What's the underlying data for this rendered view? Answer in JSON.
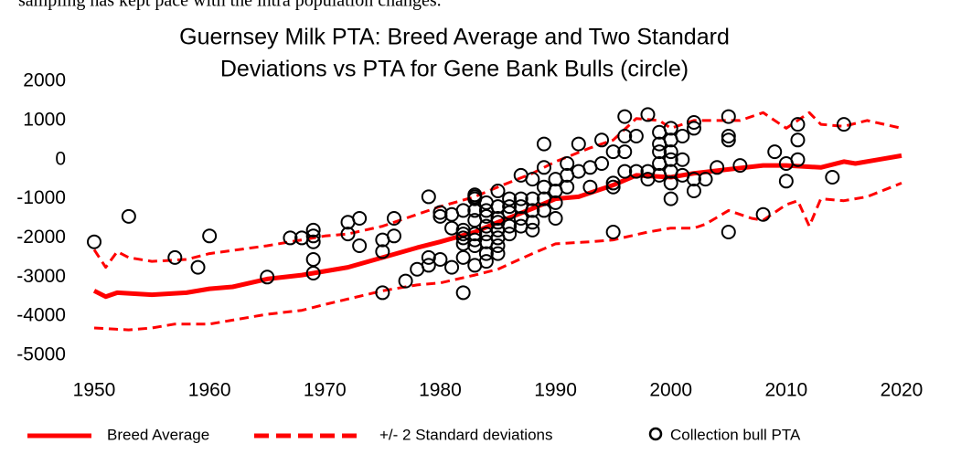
{
  "chart_data": {
    "type": "line",
    "caption": "sampling has kept pace with the intra population changes.",
    "title": [
      "Guernsey Milk PTA: Breed Average and Two Standard",
      "Deviations vs PTA for Gene Bank Bulls (circle)"
    ],
    "xlim": [
      1950,
      2020
    ],
    "xticks": [
      1950,
      1960,
      1970,
      1980,
      1990,
      2000,
      2010,
      2020
    ],
    "ylim": [
      -5000,
      2000
    ],
    "yticks": [
      -5000,
      -4000,
      -3000,
      -2000,
      -1000,
      0,
      1000,
      2000
    ],
    "grid": false,
    "legend": "bottom",
    "series": [
      {
        "name": "Breed Average",
        "type": "line",
        "color": "#ff0000",
        "style": "solid",
        "x": [
          1950,
          1951,
          1952,
          1955,
          1958,
          1960,
          1962,
          1965,
          1968,
          1970,
          1972,
          1975,
          1978,
          1980,
          1983,
          1985,
          1988,
          1990,
          1992,
          1995,
          1997,
          2000,
          2002,
          2005,
          2008,
          2010,
          2013,
          2015,
          2016,
          2018,
          2020
        ],
        "values": [
          -3350,
          -3500,
          -3400,
          -3450,
          -3400,
          -3300,
          -3250,
          -3050,
          -2950,
          -2850,
          -2750,
          -2500,
          -2250,
          -2100,
          -1850,
          -1600,
          -1250,
          -1000,
          -950,
          -650,
          -400,
          -450,
          -350,
          -250,
          -150,
          -150,
          -200,
          -50,
          -100,
          0,
          100
        ]
      },
      {
        "name": "+/- 2 Standard deviations",
        "type": "line",
        "color": "#ff0000",
        "style": "dashed",
        "x": [
          1950,
          1951,
          1952,
          1953,
          1955,
          1958,
          1960,
          1965,
          1970,
          1972,
          1975,
          1978,
          1980,
          1983,
          1985,
          1988,
          1990,
          1993,
          1995,
          1997,
          1999,
          2000,
          2002,
          2004,
          2006,
          2008,
          2010,
          2012,
          2013,
          2015,
          2017,
          2020
        ],
        "values": [
          -2300,
          -2750,
          -2350,
          -2500,
          -2600,
          -2550,
          -2400,
          -2200,
          -1950,
          -1900,
          -1700,
          -1400,
          -1200,
          -950,
          -700,
          -350,
          -50,
          300,
          500,
          1050,
          1000,
          800,
          1000,
          1000,
          1000,
          1200,
          800,
          1200,
          900,
          850,
          1000,
          800
        ]
      },
      {
        "name": "+/- 2 Standard deviations",
        "type": "line",
        "color": "#ff0000",
        "style": "dashed",
        "nolegend": true,
        "x": [
          1950,
          1953,
          1955,
          1957,
          1960,
          1965,
          1968,
          1970,
          1975,
          1978,
          1980,
          1983,
          1985,
          1988,
          1990,
          1993,
          1995,
          1998,
          2000,
          2002,
          2003,
          2005,
          2007,
          2008,
          2010,
          2011,
          2012,
          2013,
          2015,
          2017,
          2020
        ],
        "values": [
          -4300,
          -4350,
          -4300,
          -4200,
          -4200,
          -3950,
          -3850,
          -3700,
          -3350,
          -3200,
          -3150,
          -2950,
          -2800,
          -2400,
          -2150,
          -2100,
          -2050,
          -1850,
          -1750,
          -1750,
          -1650,
          -1300,
          -1500,
          -1550,
          -1150,
          -1050,
          -1700,
          -1000,
          -1050,
          -950,
          -600
        ]
      },
      {
        "name": "Collection bull PTA",
        "type": "scatter",
        "color": "#000000",
        "x": [
          1950,
          1953,
          1957,
          1959,
          1960,
          1965,
          1967,
          1968,
          1969,
          1969,
          1969,
          1969,
          1969,
          1972,
          1972,
          1973,
          1973,
          1975,
          1975,
          1975,
          1976,
          1976,
          1977,
          1978,
          1979,
          1979,
          1979,
          1980,
          1980,
          1980,
          1981,
          1981,
          1981,
          1982,
          1982,
          1982,
          1982,
          1982,
          1982,
          1982,
          1983,
          1983,
          1983,
          1983,
          1983,
          1983,
          1983,
          1983,
          1983,
          1984,
          1984,
          1984,
          1984,
          1984,
          1984,
          1984,
          1984,
          1985,
          1985,
          1985,
          1985,
          1985,
          1985,
          1985,
          1985,
          1986,
          1986,
          1986,
          1986,
          1986,
          1987,
          1987,
          1987,
          1987,
          1987,
          1988,
          1988,
          1988,
          1988,
          1988,
          1989,
          1989,
          1989,
          1989,
          1989,
          1990,
          1990,
          1990,
          1990,
          1991,
          1991,
          1991,
          1992,
          1992,
          1993,
          1993,
          1994,
          1994,
          1995,
          1995,
          1995,
          1995,
          1996,
          1996,
          1996,
          1996,
          1997,
          1997,
          1998,
          1998,
          1998,
          1999,
          1999,
          1999,
          1999,
          1999,
          2000,
          2000,
          2000,
          2000,
          2000,
          2000,
          2000,
          2001,
          2001,
          2001,
          2002,
          2002,
          2002,
          2002,
          2003,
          2004,
          2005,
          2005,
          2005,
          2005,
          2006,
          2008,
          2009,
          2010,
          2010,
          2011,
          2011,
          2011,
          2014,
          2015
        ],
        "values": [
          -2100,
          -1450,
          -2500,
          -2750,
          -1950,
          -3000,
          -2000,
          -2000,
          -1800,
          -1950,
          -2100,
          -2550,
          -2900,
          -1600,
          -1900,
          -1500,
          -2200,
          -2050,
          -2350,
          -3400,
          -1500,
          -1950,
          -3100,
          -2800,
          -950,
          -2500,
          -2700,
          -1350,
          -1450,
          -2550,
          -1400,
          -1750,
          -2750,
          -1300,
          -1800,
          -1900,
          -2000,
          -2150,
          -2500,
          -3400,
          -900,
          -950,
          -1000,
          -1300,
          -1550,
          -1900,
          -2050,
          -2200,
          -2700,
          -1100,
          -1300,
          -1450,
          -1700,
          -1900,
          -2100,
          -2400,
          -2600,
          -800,
          -1200,
          -1500,
          -1600,
          -1800,
          -2000,
          -2200,
          -2400,
          -1000,
          -1200,
          -1350,
          -1700,
          -1900,
          -400,
          -1000,
          -1200,
          -1500,
          -1700,
          -500,
          -1000,
          -1300,
          -1600,
          -1800,
          400,
          -200,
          -700,
          -1000,
          -1300,
          -500,
          -800,
          -1100,
          -1500,
          -100,
          -400,
          -700,
          400,
          -300,
          -200,
          -700,
          500,
          -100,
          200,
          -600,
          -700,
          -1850,
          1100,
          600,
          200,
          -300,
          600,
          -300,
          1150,
          -300,
          -500,
          700,
          400,
          200,
          -100,
          -400,
          800,
          500,
          200,
          0,
          -300,
          -600,
          -1000,
          600,
          0,
          -400,
          950,
          800,
          -500,
          -800,
          -500,
          -200,
          1100,
          600,
          500,
          -1850,
          -150,
          -1400,
          200,
          -100,
          -550,
          900,
          500,
          0,
          -450,
          900
        ]
      }
    ]
  }
}
